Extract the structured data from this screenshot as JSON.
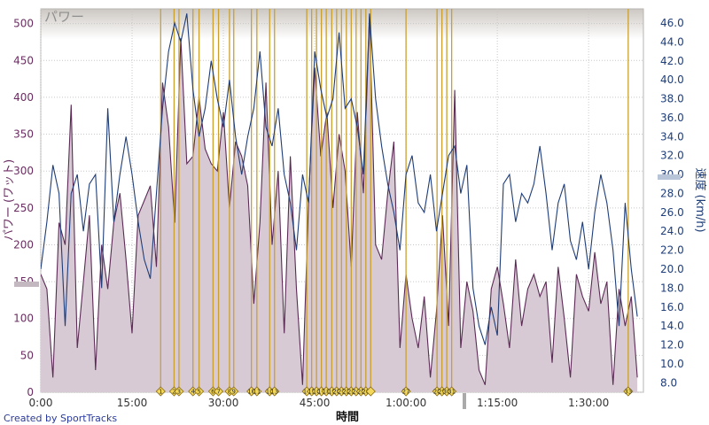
{
  "chart_data": {
    "type": "line",
    "title": "パワー",
    "xlabel": "時間",
    "ylabel_left": "パワー (ワット)",
    "ylabel_right": "速度 (km/h)",
    "x_unit": "minutes",
    "xlim": [
      0,
      99
    ],
    "ylim_left": [
      0,
      520
    ],
    "ylim_right": [
      7,
      47.5
    ],
    "x_tick_labels": [
      "0:00",
      "15:00",
      "30:00",
      "45:00",
      "1:00:00",
      "1:15:00",
      "1:30:00"
    ],
    "x_tick_values": [
      0,
      15,
      30,
      45,
      60,
      75,
      90
    ],
    "y_left_ticks": [
      0,
      50,
      100,
      150,
      200,
      250,
      300,
      350,
      400,
      450,
      500
    ],
    "y_right_ticks": [
      8.0,
      10.0,
      12.0,
      14.0,
      16.0,
      18.0,
      20.0,
      22.0,
      24.0,
      26.0,
      28.0,
      30.0,
      32.0,
      34.0,
      36.0,
      38.0,
      40.0,
      42.0,
      44.0,
      46.0
    ],
    "y_right_tick_labels": [
      "8.0",
      "10.0",
      "12.0",
      "14.0",
      "16.0",
      "18.0",
      "20.0",
      "22.0",
      "24.0",
      "26.0",
      "28.0",
      "30.0",
      "32.0",
      "34.0",
      "36.0",
      "38.0",
      "40.0",
      "42.0",
      "44.0",
      "46.0"
    ],
    "grid": true,
    "series": [
      {
        "name": "パワー",
        "axis": "left",
        "color": "#5b2a55",
        "fill": "#d8cad5",
        "x": [
          0,
          1,
          2,
          3,
          4,
          5,
          6,
          7,
          8,
          9,
          10,
          11,
          12,
          13,
          14,
          15,
          16,
          17,
          18,
          19,
          20,
          21,
          22,
          23,
          24,
          25,
          26,
          27,
          28,
          29,
          30,
          31,
          32,
          33,
          34,
          35,
          36,
          37,
          38,
          39,
          40,
          41,
          42,
          43,
          44,
          45,
          46,
          47,
          48,
          49,
          50,
          51,
          52,
          53,
          54,
          55,
          56,
          57,
          58,
          59,
          60,
          61,
          62,
          63,
          64,
          65,
          66,
          67,
          68,
          69,
          70,
          71,
          72,
          73,
          74,
          75,
          76,
          77,
          78,
          79,
          80,
          81,
          82,
          83,
          84,
          85,
          86,
          87,
          88,
          89,
          90,
          91,
          92,
          93,
          94,
          95,
          96,
          97,
          98
        ],
        "values": [
          160,
          140,
          20,
          230,
          200,
          390,
          60,
          150,
          240,
          30,
          200,
          140,
          230,
          270,
          180,
          80,
          240,
          260,
          280,
          170,
          420,
          360,
          230,
          480,
          310,
          320,
          400,
          330,
          310,
          300,
          380,
          250,
          340,
          320,
          280,
          120,
          230,
          420,
          200,
          300,
          80,
          320,
          140,
          10,
          260,
          440,
          320,
          380,
          250,
          350,
          300,
          170,
          380,
          270,
          510,
          200,
          180,
          270,
          340,
          60,
          160,
          100,
          60,
          130,
          20,
          110,
          240,
          90,
          410,
          60,
          150,
          110,
          30,
          10,
          140,
          170,
          120,
          60,
          180,
          90,
          140,
          160,
          130,
          150,
          40,
          170,
          100,
          20,
          160,
          130,
          110,
          190,
          120,
          150,
          10,
          140,
          90,
          130,
          20
        ]
      },
      {
        "name": "速度",
        "axis": "right",
        "color": "#1f3d77",
        "x": [
          0,
          1,
          2,
          3,
          4,
          5,
          6,
          7,
          8,
          9,
          10,
          11,
          12,
          13,
          14,
          15,
          16,
          17,
          18,
          19,
          20,
          21,
          22,
          23,
          24,
          25,
          26,
          27,
          28,
          29,
          30,
          31,
          32,
          33,
          34,
          35,
          36,
          37,
          38,
          39,
          40,
          41,
          42,
          43,
          44,
          45,
          46,
          47,
          48,
          49,
          50,
          51,
          52,
          53,
          54,
          55,
          56,
          57,
          58,
          59,
          60,
          61,
          62,
          63,
          64,
          65,
          66,
          67,
          68,
          69,
          70,
          71,
          72,
          73,
          74,
          75,
          76,
          77,
          78,
          79,
          80,
          81,
          82,
          83,
          84,
          85,
          86,
          87,
          88,
          89,
          90,
          91,
          92,
          93,
          94,
          95,
          96,
          97,
          98
        ],
        "values": [
          20,
          25,
          31,
          28,
          14,
          28,
          30,
          24,
          29,
          30,
          18,
          37,
          25,
          30,
          34,
          30,
          25,
          21,
          19,
          28,
          37,
          43,
          46,
          44,
          47,
          39,
          34,
          37,
          42,
          38,
          35,
          40,
          34,
          30,
          34,
          37,
          43,
          35,
          33,
          37,
          30,
          27,
          22,
          30,
          27,
          43,
          39,
          36,
          38,
          45,
          37,
          38,
          35,
          30,
          47,
          38,
          33,
          29,
          26,
          22,
          30,
          32,
          27,
          26,
          30,
          24,
          28,
          32,
          33,
          28,
          31,
          18,
          14,
          12,
          16,
          13,
          29,
          30,
          25,
          28,
          27,
          29,
          33,
          28,
          22,
          27,
          29,
          23,
          21,
          25,
          20,
          26,
          30,
          27,
          22,
          14,
          27,
          20,
          15
        ]
      }
    ],
    "laps": {
      "color": "#c9a030",
      "x": [
        19.7,
        21.9,
        22.7,
        25.0,
        26.0,
        28.3,
        29.2,
        31.0,
        31.7,
        34.6,
        35.5,
        37.6,
        38.4,
        43.7,
        44.5,
        45.3,
        46.1,
        46.9,
        47.8,
        48.6,
        49.4,
        50.2,
        51.0,
        51.8,
        52.6,
        53.4,
        54.2,
        60.0,
        65.1,
        65.9,
        66.7,
        67.5,
        96.5
      ],
      "labels": [
        "1",
        "2",
        "3",
        "4",
        "5",
        "6",
        "7",
        "8",
        "9",
        "10",
        "11",
        "12",
        "13",
        "14",
        "15",
        "16",
        "17",
        "18",
        "19",
        "20",
        "21",
        "22",
        "23",
        "24",
        "25",
        "26",
        "",
        "27",
        "28",
        "29",
        "30",
        "31",
        "33"
      ]
    }
  },
  "footer": {
    "credit": "Created by SportTracks"
  }
}
